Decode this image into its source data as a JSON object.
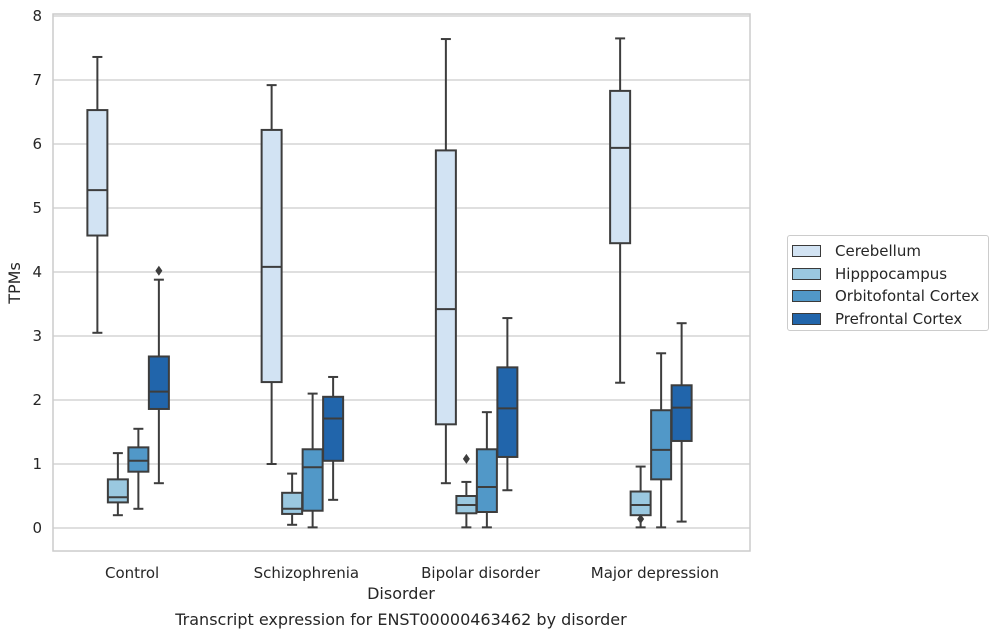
{
  "chart_data": {
    "type": "boxplot",
    "title": "",
    "caption": "Transcript expression for ENST00000463462 by disorder",
    "xlabel": "Disorder",
    "ylabel": "TPMs",
    "ylim": [
      -0.35,
      8.05
    ],
    "yticks": [
      "0",
      "1",
      "2",
      "3",
      "4",
      "5",
      "6",
      "7",
      "8"
    ],
    "categories": [
      "Control",
      "Schizophrenia",
      "Bipolar disorder",
      "Major depression"
    ],
    "grid": "horizontal",
    "legend_position": "right",
    "series": [
      {
        "name": "Cerebellum",
        "color": "#d2e3f3",
        "boxes": [
          {
            "whisker_low": 3.05,
            "q1": 4.57,
            "median": 5.28,
            "q3": 6.53,
            "whisker_high": 7.36,
            "outliers": []
          },
          {
            "whisker_low": 1.0,
            "q1": 2.28,
            "median": 4.08,
            "q3": 6.22,
            "whisker_high": 6.92,
            "outliers": []
          },
          {
            "whisker_low": 0.7,
            "q1": 1.62,
            "median": 3.42,
            "q3": 5.9,
            "whisker_high": 7.64,
            "outliers": []
          },
          {
            "whisker_low": 2.27,
            "q1": 4.45,
            "median": 5.94,
            "q3": 6.83,
            "whisker_high": 7.65,
            "outliers": []
          }
        ]
      },
      {
        "name": "Hipppocampus",
        "color": "#9ac8e0",
        "boxes": [
          {
            "whisker_low": 0.2,
            "q1": 0.4,
            "median": 0.48,
            "q3": 0.76,
            "whisker_high": 1.17,
            "outliers": []
          },
          {
            "whisker_low": 0.05,
            "q1": 0.22,
            "median": 0.3,
            "q3": 0.55,
            "whisker_high": 0.85,
            "outliers": []
          },
          {
            "whisker_low": 0.01,
            "q1": 0.23,
            "median": 0.36,
            "q3": 0.5,
            "whisker_high": 0.72,
            "outliers": [
              1.08
            ]
          },
          {
            "whisker_low": 0.01,
            "q1": 0.2,
            "median": 0.36,
            "q3": 0.57,
            "whisker_high": 0.96,
            "outliers": [
              0.14
            ]
          }
        ]
      },
      {
        "name": "Orbitofontal Cortex",
        "color": "#5198c8",
        "boxes": [
          {
            "whisker_low": 0.3,
            "q1": 0.88,
            "median": 1.05,
            "q3": 1.26,
            "whisker_high": 1.55,
            "outliers": []
          },
          {
            "whisker_low": 0.01,
            "q1": 0.27,
            "median": 0.95,
            "q3": 1.23,
            "whisker_high": 2.1,
            "outliers": []
          },
          {
            "whisker_low": 0.01,
            "q1": 0.25,
            "median": 0.64,
            "q3": 1.23,
            "whisker_high": 1.81,
            "outliers": []
          },
          {
            "whisker_low": 0.01,
            "q1": 0.76,
            "median": 1.22,
            "q3": 1.84,
            "whisker_high": 2.73,
            "outliers": []
          }
        ]
      },
      {
        "name": "Prefrontal Cortex",
        "color": "#2165ab",
        "boxes": [
          {
            "whisker_low": 0.7,
            "q1": 1.86,
            "median": 2.13,
            "q3": 2.68,
            "whisker_high": 3.88,
            "outliers": [
              4.02
            ]
          },
          {
            "whisker_low": 0.44,
            "q1": 1.05,
            "median": 1.71,
            "q3": 2.05,
            "whisker_high": 2.36,
            "outliers": []
          },
          {
            "whisker_low": 0.59,
            "q1": 1.11,
            "median": 1.87,
            "q3": 2.51,
            "whisker_high": 3.28,
            "outliers": []
          },
          {
            "whisker_low": 0.1,
            "q1": 1.36,
            "median": 1.88,
            "q3": 2.23,
            "whisker_high": 3.2,
            "outliers": []
          }
        ]
      }
    ]
  }
}
